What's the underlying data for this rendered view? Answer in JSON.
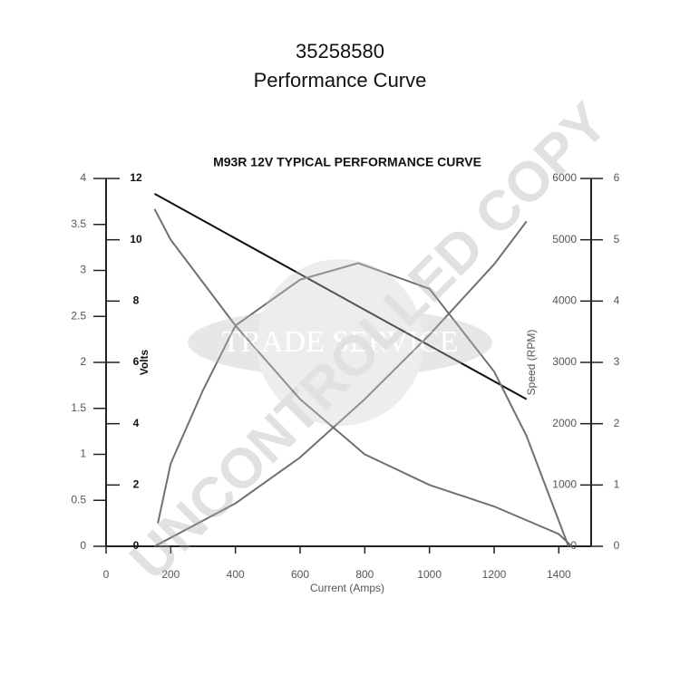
{
  "header": {
    "title": "35258580",
    "subtitle": "Performance Curve"
  },
  "watermark": {
    "text": "UNCONTROLLED COPY",
    "badge": "TRADE SERVICE"
  },
  "chart_data": {
    "type": "line",
    "title": "M93R 12V TYPICAL PERFORMANCE CURVE",
    "x_label": "Current (Amps)",
    "xlim": [
      0,
      1500
    ],
    "xticks": [
      0,
      200,
      400,
      600,
      800,
      1000,
      1200,
      1400
    ],
    "axes": [
      {
        "side": "left",
        "lim": [
          0,
          4
        ],
        "ticks": [
          0,
          0.5,
          1,
          1.5,
          2,
          2.5,
          3,
          3.5,
          4
        ]
      },
      {
        "side": "left-inner",
        "label": "Volts",
        "lim": [
          0,
          12
        ],
        "ticks": [
          0,
          2,
          4,
          6,
          8,
          10,
          12
        ]
      },
      {
        "side": "right-inner",
        "label": "Speed (RPM)",
        "lim": [
          0,
          6000
        ],
        "ticks": [
          0,
          1000,
          2000,
          3000,
          4000,
          5000,
          6000
        ]
      },
      {
        "side": "right",
        "lim": [
          0,
          6
        ],
        "ticks": [
          0,
          1,
          2,
          3,
          4,
          5,
          6
        ]
      }
    ],
    "series": [
      {
        "axis": 1,
        "color": "#111111",
        "x": [
          150,
          1300
        ],
        "values": [
          11.5,
          4.8
        ]
      },
      {
        "axis": 2,
        "color": "#707070",
        "x": [
          150,
          200,
          300,
          400,
          600,
          800,
          1000,
          1200,
          1400,
          1440
        ],
        "values": [
          5500,
          5000,
          4300,
          3600,
          2400,
          1500,
          1000,
          650,
          200,
          0
        ]
      },
      {
        "axis": 3,
        "color": "#707070",
        "x": [
          150,
          400,
          600,
          800,
          1000,
          1200,
          1300
        ],
        "values": [
          0,
          0.7,
          1.45,
          2.4,
          3.45,
          4.6,
          5.3
        ]
      },
      {
        "axis": 0,
        "color": "#707070",
        "x": [
          160,
          200,
          300,
          400,
          600,
          780,
          1000,
          1200,
          1300,
          1430
        ],
        "values": [
          0.25,
          0.9,
          1.7,
          2.4,
          2.9,
          3.08,
          2.8,
          1.9,
          1.2,
          0
        ]
      }
    ]
  }
}
